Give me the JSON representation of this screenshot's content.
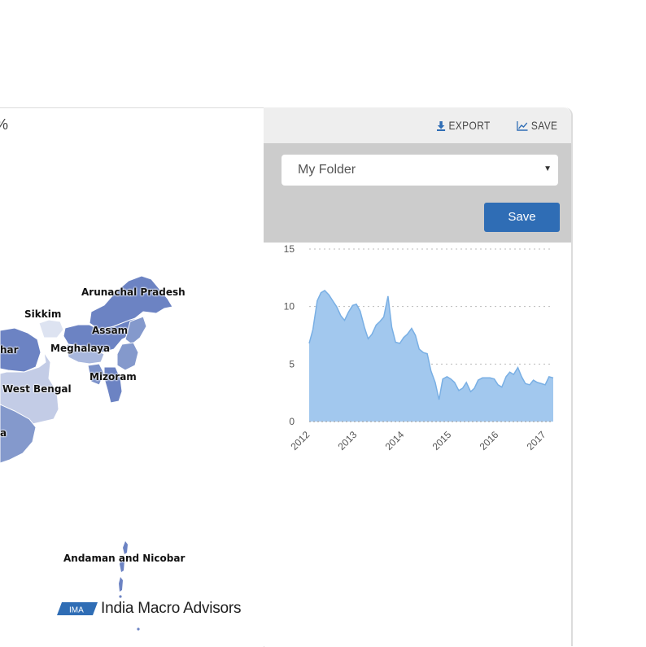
{
  "map": {
    "unit_fragment": "%",
    "labels": {
      "arunachal": "Arunachal Pradesh",
      "sikkim": "Sikkim",
      "assam": "Assam",
      "meghalaya": "Meghalaya",
      "bihar": "har",
      "mizoram": "Mizoram",
      "west_bengal": "West Bengal",
      "odisha": "a",
      "andaman": "Andaman and Nicobar"
    },
    "logo": {
      "mark_text": "IMA",
      "name": "India Macro Advisors"
    },
    "colors": {
      "dark": "#5f78bd",
      "mid": "#8499cc",
      "light": "#c3cce6",
      "pale": "#dde3f1"
    }
  },
  "toolbar": {
    "export_label": "EXPORT",
    "save_label": "SAVE",
    "export_icon": "download-icon",
    "save_icon": "chart-line-icon"
  },
  "save_panel": {
    "folder_value": "My Folder",
    "save_button_label": "Save"
  },
  "chart_data": {
    "type": "area",
    "title": "",
    "xlabel": "",
    "ylabel": "",
    "ylim": [
      0,
      15
    ],
    "yticks": [
      0,
      5,
      10,
      15
    ],
    "xticks": [
      "2012",
      "2013",
      "2014",
      "2015",
      "2016",
      "2017"
    ],
    "xlim": [
      2012,
      2017.17
    ],
    "grid": true,
    "fill_color": "#a2c8ee",
    "line_color": "#79afe4",
    "x": [
      2012.0,
      2012.08,
      2012.17,
      2012.25,
      2012.33,
      2012.42,
      2012.5,
      2012.58,
      2012.67,
      2012.75,
      2012.83,
      2012.92,
      2013.0,
      2013.08,
      2013.17,
      2013.25,
      2013.33,
      2013.42,
      2013.5,
      2013.58,
      2013.67,
      2013.75,
      2013.83,
      2013.92,
      2014.0,
      2014.08,
      2014.17,
      2014.25,
      2014.33,
      2014.42,
      2014.5,
      2014.58,
      2014.67,
      2014.75,
      2014.83,
      2014.92,
      2015.0,
      2015.08,
      2015.17,
      2015.25,
      2015.33,
      2015.42,
      2015.5,
      2015.58,
      2015.67,
      2015.75,
      2015.83,
      2015.92,
      2016.0,
      2016.08,
      2016.17,
      2016.25,
      2016.33,
      2016.42,
      2016.5,
      2016.58,
      2016.67,
      2016.75,
      2016.83,
      2016.92,
      2017.0,
      2017.08,
      2017.17
    ],
    "values": [
      6.8,
      8.0,
      10.5,
      11.2,
      11.4,
      11.0,
      10.5,
      10.0,
      9.2,
      8.8,
      9.5,
      10.1,
      10.2,
      9.6,
      8.2,
      7.2,
      7.6,
      8.4,
      8.7,
      9.1,
      10.9,
      8.2,
      6.9,
      6.8,
      7.3,
      7.6,
      8.1,
      7.5,
      6.3,
      6.0,
      5.9,
      4.4,
      3.4,
      1.9,
      3.7,
      3.9,
      3.7,
      3.4,
      2.7,
      2.9,
      3.4,
      2.6,
      2.9,
      3.6,
      3.8,
      3.8,
      3.8,
      3.7,
      3.2,
      3.0,
      3.9,
      4.3,
      4.1,
      4.7,
      3.9,
      3.3,
      3.2,
      3.6,
      3.4,
      3.3,
      3.2,
      3.9,
      3.8
    ]
  }
}
